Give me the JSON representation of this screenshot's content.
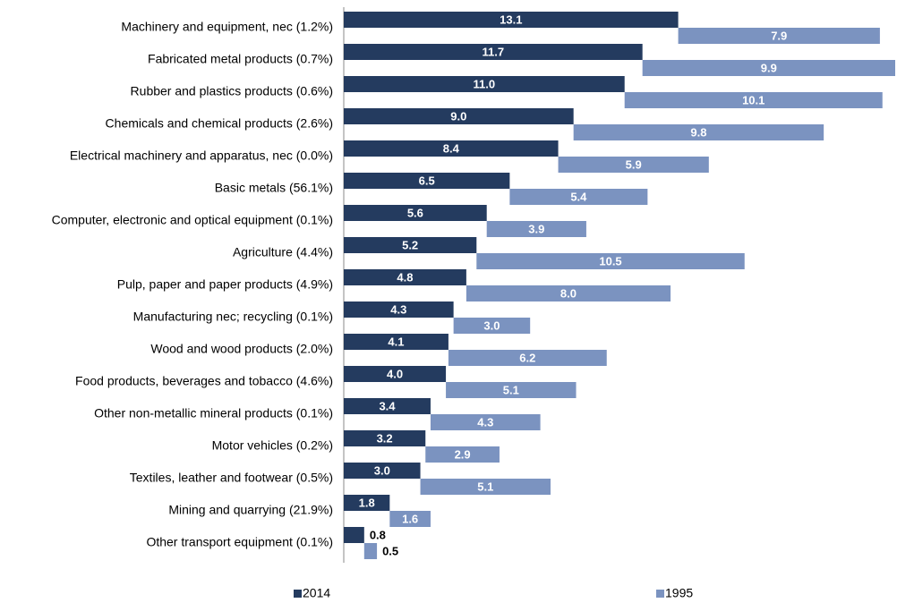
{
  "chart_data": {
    "type": "bar",
    "orientation": "horizontal",
    "layout": "cascade",
    "categories": [
      "Machinery and equipment, nec (1.2%)",
      "Fabricated metal products (0.7%)",
      "Rubber and plastics products (0.6%)",
      "Chemicals and chemical products (2.6%)",
      "Electrical machinery and apparatus, nec (0.0%)",
      "Basic metals (56.1%)",
      "Computer, electronic and optical equipment (0.1%)",
      "Agriculture (4.4%)",
      "Pulp, paper and paper products (4.9%)",
      "Manufacturing nec; recycling (0.1%)",
      "Wood and wood products (2.0%)",
      "Food products, beverages and tobacco (4.6%)",
      "Other non-metallic mineral products (0.1%)",
      "Motor vehicles (0.2%)",
      "Textiles, leather and footwear (0.5%)",
      "Mining and quarrying (21.9%)",
      "Other transport equipment (0.1%)"
    ],
    "series": [
      {
        "name": "2014",
        "color": "#243b5f",
        "values": [
          13.1,
          11.7,
          11.0,
          9.0,
          8.4,
          6.5,
          5.6,
          5.2,
          4.8,
          4.3,
          4.1,
          4.0,
          3.4,
          3.2,
          3.0,
          1.8,
          0.8
        ],
        "value_labels": [
          "13.1",
          "11.7",
          "11.0",
          "9.0",
          "8.4",
          "6.5",
          "5.6",
          "5.2",
          "4.8",
          "4.3",
          "4.1",
          "4.0",
          "3.4",
          "3.2",
          "3.0",
          "1.8",
          "0.8"
        ]
      },
      {
        "name": "1995",
        "color": "#7b93c0",
        "values": [
          7.9,
          9.9,
          10.1,
          9.8,
          5.9,
          5.4,
          3.9,
          10.5,
          8.0,
          3.0,
          6.2,
          5.1,
          4.3,
          2.9,
          5.1,
          1.6,
          0.5
        ],
        "value_labels": [
          "7.9",
          "9.9",
          "10.1",
          "9.8",
          "5.9",
          "5.4",
          "3.9",
          "10.5",
          "8.0",
          "3.0",
          "6.2",
          "5.1",
          "4.3",
          "2.9",
          "5.1",
          "1.6",
          "0.5"
        ]
      }
    ],
    "legend": "bottom"
  }
}
